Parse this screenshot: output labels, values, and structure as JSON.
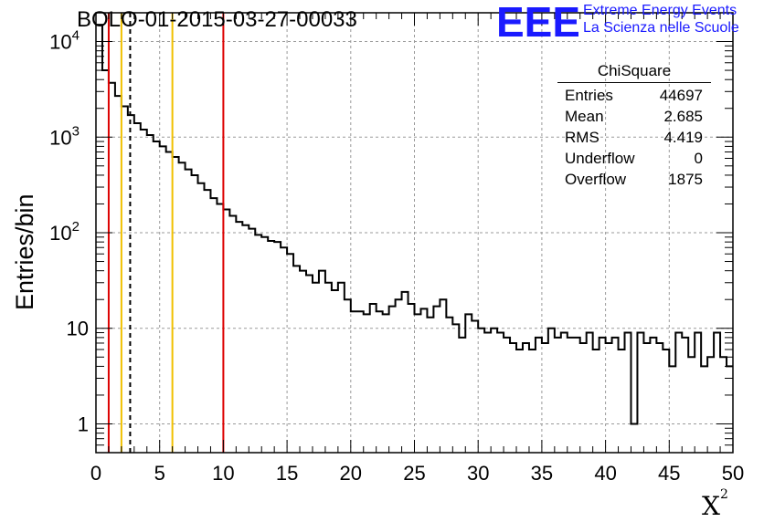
{
  "header": {
    "run_title": "BOLO-01-2015-03-27-00033",
    "logo_letters": "EEE",
    "logo_line1": "Extreme Energy Events",
    "logo_line2": "La Scienza nelle Scuole",
    "logo_color": "#1a1aff"
  },
  "stats_box": {
    "title": "ChiSquare",
    "rows": [
      {
        "label": "Entries",
        "value": "44697"
      },
      {
        "label": "Mean",
        "value": "2.685"
      },
      {
        "label": "RMS",
        "value": "4.419"
      },
      {
        "label": "Underflow",
        "value": "0"
      },
      {
        "label": "Overflow",
        "value": "1875"
      }
    ]
  },
  "chart_data": {
    "type": "histogram",
    "ylabel": "Entries/bin",
    "xlabel": "X",
    "xlabel_sup": "2",
    "xlim": [
      0,
      50
    ],
    "ylim": [
      0.5,
      20000
    ],
    "yscale": "log",
    "grid": true,
    "bin_width": 0.5,
    "x_ticks": [
      "0",
      "5",
      "10",
      "15",
      "20",
      "25",
      "30",
      "35",
      "40",
      "45",
      "50"
    ],
    "y_ticks": [
      {
        "value": 1,
        "base": "1",
        "exp": ""
      },
      {
        "value": 10,
        "base": "10",
        "exp": ""
      },
      {
        "value": 100,
        "base": "10",
        "exp": "2"
      },
      {
        "value": 1000,
        "base": "10",
        "exp": "3"
      },
      {
        "value": 10000,
        "base": "10",
        "exp": "4"
      }
    ],
    "values": [
      15000,
      5000,
      3700,
      2700,
      2100,
      1700,
      1400,
      1200,
      1050,
      900,
      800,
      700,
      620,
      540,
      460,
      400,
      330,
      280,
      230,
      200,
      175,
      150,
      130,
      120,
      110,
      95,
      90,
      82,
      80,
      70,
      60,
      45,
      40,
      36,
      30,
      40,
      30,
      25,
      30,
      20,
      15,
      15,
      14,
      18,
      15,
      14,
      17,
      20,
      24,
      18,
      14,
      16,
      13,
      17,
      20,
      13,
      11,
      8,
      14,
      12,
      10,
      9,
      10,
      9,
      8,
      7,
      6,
      7,
      6,
      8,
      7,
      10,
      8,
      9,
      8,
      8,
      7,
      9,
      6,
      8,
      7,
      8,
      6,
      9,
      1,
      9,
      7,
      8,
      7,
      6,
      4,
      9,
      8,
      5,
      9,
      4,
      5,
      9,
      5,
      4
    ],
    "vertical_lines": [
      {
        "x": 1,
        "color": "#dd0000",
        "style": "solid"
      },
      {
        "x": 2,
        "color": "#f0c000",
        "style": "solid"
      },
      {
        "x": 2.685,
        "color": "#000000",
        "style": "dashed"
      },
      {
        "x": 6,
        "color": "#f0c000",
        "style": "solid"
      },
      {
        "x": 10,
        "color": "#dd0000",
        "style": "solid"
      }
    ]
  }
}
